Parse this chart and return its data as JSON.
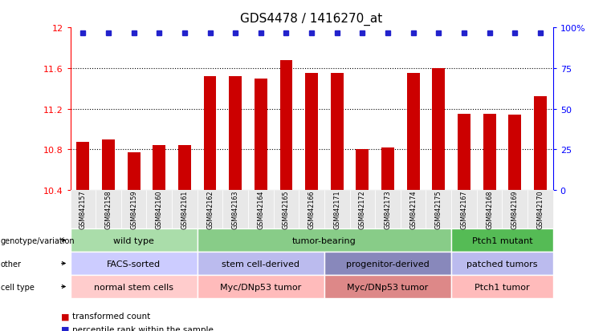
{
  "title": "GDS4478 / 1416270_at",
  "samples": [
    "GSM842157",
    "GSM842158",
    "GSM842159",
    "GSM842160",
    "GSM842161",
    "GSM842162",
    "GSM842163",
    "GSM842164",
    "GSM842165",
    "GSM842166",
    "GSM842171",
    "GSM842172",
    "GSM842173",
    "GSM842174",
    "GSM842175",
    "GSM842167",
    "GSM842168",
    "GSM842169",
    "GSM842170"
  ],
  "bar_values": [
    10.87,
    10.9,
    10.77,
    10.84,
    10.84,
    11.52,
    11.52,
    11.5,
    11.68,
    11.55,
    11.55,
    10.8,
    10.82,
    11.55,
    11.6,
    11.15,
    11.15,
    11.14,
    11.32
  ],
  "dot_yval": 11.95,
  "ylim_left": [
    10.4,
    12.0
  ],
  "yticks_left": [
    10.4,
    10.8,
    11.2,
    11.6,
    12.0
  ],
  "ytick_labels_left": [
    "10.4",
    "10.8",
    "11.2",
    "11.6",
    "12"
  ],
  "ylim_right": [
    0,
    100
  ],
  "yticks_right": [
    0,
    25,
    50,
    75,
    100
  ],
  "ytick_labels_right": [
    "0",
    "25",
    "50",
    "75",
    "100%"
  ],
  "bar_color": "#cc0000",
  "dot_color": "#2222cc",
  "genotype_groups": [
    {
      "label": "wild type",
      "start": 0,
      "end": 5,
      "color": "#aaddaa"
    },
    {
      "label": "tumor-bearing",
      "start": 5,
      "end": 15,
      "color": "#88cc88"
    },
    {
      "label": "Ptch1 mutant",
      "start": 15,
      "end": 19,
      "color": "#55bb55"
    }
  ],
  "other_groups": [
    {
      "label": "FACS-sorted",
      "start": 0,
      "end": 5,
      "color": "#ccccff"
    },
    {
      "label": "stem cell-derived",
      "start": 5,
      "end": 10,
      "color": "#bbbbee"
    },
    {
      "label": "progenitor-derived",
      "start": 10,
      "end": 15,
      "color": "#8888bb"
    },
    {
      "label": "patched tumors",
      "start": 15,
      "end": 19,
      "color": "#bbbbee"
    }
  ],
  "celltype_groups": [
    {
      "label": "normal stem cells",
      "start": 0,
      "end": 5,
      "color": "#ffcccc"
    },
    {
      "label": "Myc/DNp53 tumor",
      "start": 5,
      "end": 10,
      "color": "#ffbbbb"
    },
    {
      "label": "Myc/DNp53 tumor",
      "start": 10,
      "end": 15,
      "color": "#dd8888"
    },
    {
      "label": "Ptch1 tumor",
      "start": 15,
      "end": 19,
      "color": "#ffbbbb"
    }
  ],
  "row_labels": [
    "genotype/variation",
    "other",
    "cell type"
  ],
  "legend_red_label": "transformed count",
  "legend_blue_label": "percentile rank within the sample"
}
